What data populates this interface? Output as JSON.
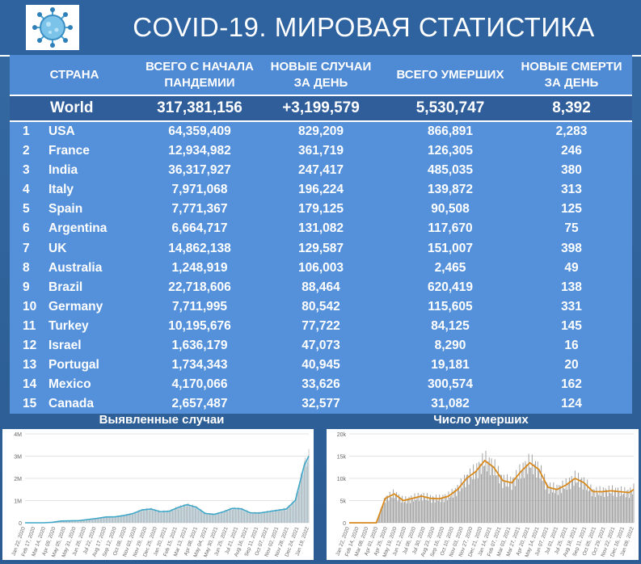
{
  "title": "COVID-19. МИРОВАЯ СТАТИСТИКА",
  "columns": {
    "country": "СТРАНА",
    "total": [
      "ВСЕГО С НАЧАЛА",
      "ПАНДЕМИИ"
    ],
    "new_cases": [
      "НОВЫЕ СЛУЧАИ",
      "ЗА ДЕНЬ"
    ],
    "deaths": "ВСЕГО УМЕРШИХ",
    "new_deaths": [
      "НОВЫЕ СМЕРТИ",
      "ЗА ДЕНЬ"
    ]
  },
  "world": {
    "name": "World",
    "total": "317,381,156",
    "new_cases": "+3,199,579",
    "deaths": "5,530,747",
    "new_deaths": "8,392"
  },
  "rows": [
    {
      "rank": "1",
      "country": "USA",
      "total": "64,359,409",
      "new_cases": "829,209",
      "deaths": "866,891",
      "new_deaths": "2,283"
    },
    {
      "rank": "2",
      "country": "France",
      "total": "12,934,982",
      "new_cases": "361,719",
      "deaths": "126,305",
      "new_deaths": "246"
    },
    {
      "rank": "3",
      "country": "India",
      "total": "36,317,927",
      "new_cases": "247,417",
      "deaths": "485,035",
      "new_deaths": "380"
    },
    {
      "rank": "4",
      "country": "Italy",
      "total": "7,971,068",
      "new_cases": "196,224",
      "deaths": "139,872",
      "new_deaths": "313"
    },
    {
      "rank": "5",
      "country": "Spain",
      "total": "7,771,367",
      "new_cases": "179,125",
      "deaths": "90,508",
      "new_deaths": "125"
    },
    {
      "rank": "6",
      "country": "Argentina",
      "total": "6,664,717",
      "new_cases": "131,082",
      "deaths": "117,670",
      "new_deaths": "75"
    },
    {
      "rank": "7",
      "country": "UK",
      "total": "14,862,138",
      "new_cases": "129,587",
      "deaths": "151,007",
      "new_deaths": "398"
    },
    {
      "rank": "8",
      "country": "Australia",
      "total": "1,248,919",
      "new_cases": "106,003",
      "deaths": "2,465",
      "new_deaths": "49"
    },
    {
      "rank": "9",
      "country": "Brazil",
      "total": "22,718,606",
      "new_cases": "88,464",
      "deaths": "620,419",
      "new_deaths": "138"
    },
    {
      "rank": "10",
      "country": "Germany",
      "total": "7,711,995",
      "new_cases": "80,542",
      "deaths": "115,605",
      "new_deaths": "331"
    },
    {
      "rank": "11",
      "country": "Turkey",
      "total": "10,195,676",
      "new_cases": "77,722",
      "deaths": "84,125",
      "new_deaths": "145"
    },
    {
      "rank": "12",
      "country": "Israel",
      "total": "1,636,179",
      "new_cases": "47,073",
      "deaths": "8,290",
      "new_deaths": "16"
    },
    {
      "rank": "13",
      "country": "Portugal",
      "total": "1,734,343",
      "new_cases": "40,945",
      "deaths": "19,181",
      "new_deaths": "20"
    },
    {
      "rank": "14",
      "country": "Mexico",
      "total": "4,170,066",
      "new_cases": "33,626",
      "deaths": "300,574",
      "new_deaths": "162"
    },
    {
      "rank": "15",
      "country": "Canada",
      "total": "2,657,487",
      "new_cases": "32,577",
      "deaths": "31,082",
      "new_deaths": "124"
    }
  ],
  "colors": {
    "header_bg": "#2f63a0",
    "table_bg": "#5591da",
    "world_bg": "#2f5e9a",
    "bar": "#9a9a9a",
    "line_cases": "#3fa7c8",
    "line_deaths": "#d8891c"
  },
  "chart_data": [
    {
      "type": "area",
      "title": "Выявленные случаи",
      "yticks": [
        "4M",
        "3M",
        "2M",
        "1M",
        "0"
      ],
      "ylim": [
        0,
        4000000
      ],
      "xticks": [
        "Jan 22, 2020",
        "Feb 17, 2020",
        "Mar 14, 2020",
        "Apr 09, 2020",
        "May 05, 2020",
        "May 31, 2020",
        "Jun 26, 2020",
        "Jul 22, 2020",
        "Aug 17, 2020",
        "Sep 12, 2020",
        "Oct 08, 2020",
        "Nov 03, 2020",
        "Nov 29, 2020",
        "Dec 25, 2020",
        "Jan 20, 2021",
        "Feb 15, 2021",
        "Mar 13, 2021",
        "Apr 08, 2021",
        "May 04, 2021",
        "May 30, 2021",
        "Jun 25, 2021",
        "Jul 21, 2021",
        "Aug 16, 2021",
        "Sep 11, 2021",
        "Oct 07, 2021",
        "Nov 02, 2021",
        "Nov 28, 2021",
        "Dec 24, 2021",
        "Jan 19, 2022"
      ],
      "x_index": [
        0,
        8,
        16,
        24,
        32,
        40,
        48,
        56,
        64,
        72,
        80,
        88,
        96,
        104,
        112,
        120,
        128,
        136,
        144,
        152,
        160,
        168,
        176,
        184,
        192,
        200,
        208,
        216,
        224,
        232,
        240,
        248,
        252
      ],
      "values": [
        0,
        0,
        0,
        20000,
        80000,
        90000,
        100000,
        150000,
        200000,
        260000,
        270000,
        330000,
        420000,
        580000,
        620000,
        500000,
        520000,
        690000,
        820000,
        700000,
        420000,
        380000,
        490000,
        650000,
        630000,
        450000,
        440000,
        500000,
        560000,
        620000,
        1000000,
        2600000,
        3000000
      ],
      "grid": true
    },
    {
      "type": "bar",
      "title": "Число умерших",
      "yticks": [
        "20k",
        "15k",
        "10k",
        "5k",
        "0"
      ],
      "ylim": [
        0,
        20000
      ],
      "xticks": [
        "Jan 22, 2020",
        "Feb 14, 2020",
        "Mar 08, 2020",
        "Apr 01, 2020",
        "Apr 25, 2020",
        "May 19, 2020",
        "Jun 12, 2020",
        "Jul 06, 2020",
        "Jul 30, 2020",
        "Aug 23, 2020",
        "Sep 16, 2020",
        "Oct 10, 2020",
        "Nov 03, 2020",
        "Nov 27, 2020",
        "Dec 21, 2020",
        "Jan 14, 2021",
        "Feb 07, 2021",
        "Mar 03, 2021",
        "Mar 27, 2021",
        "Apr 20, 2021",
        "May 14, 2021",
        "Jun 07, 2021",
        "Jul 01, 2021",
        "Jul 25, 2021",
        "Aug 18, 2021",
        "Sep 11, 2021",
        "Oct 05, 2021",
        "Oct 29, 2021",
        "Nov 22, 2021",
        "Dec 16, 2021",
        "Jan 09, 2022"
      ],
      "x_index": [
        0,
        8,
        16,
        24,
        32,
        40,
        48,
        56,
        64,
        72,
        80,
        88,
        96,
        104,
        112,
        120,
        128,
        136,
        144,
        152,
        160,
        168,
        176,
        184,
        192,
        200,
        208,
        216,
        224,
        232,
        240,
        248,
        252
      ],
      "values": [
        0,
        0,
        0,
        0,
        5500,
        6500,
        5000,
        5500,
        6000,
        5500,
        5400,
        6000,
        7500,
        10000,
        11500,
        14000,
        12500,
        9500,
        9000,
        11500,
        13500,
        12000,
        8000,
        7500,
        8500,
        10000,
        9000,
        7000,
        7000,
        7200,
        7000,
        6800,
        7500
      ],
      "avg_line": true,
      "grid": true
    }
  ]
}
